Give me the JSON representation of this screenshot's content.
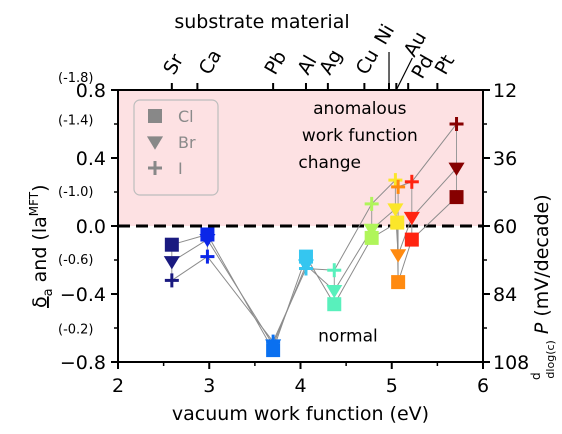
{
  "chart_data": {
    "type": "scatter",
    "xlabel": "vacuum work function (eV)",
    "ylabel_left": {
      "main": "δa",
      "conj": "and",
      "term": "(la",
      "sup": "MFT",
      "close": ")"
    },
    "ylabel_right": {
      "prefix": "d",
      "denom": "dlog(c)",
      "var": "P",
      "unit": "(mV/decade)"
    },
    "top_axis_title": "substrate material",
    "xlim": [
      2,
      6
    ],
    "ylim": [
      -0.8,
      0.8
    ],
    "x_ticks": [
      2,
      3,
      4,
      5,
      6
    ],
    "x_tick_labels": [
      "2",
      "3",
      "4",
      "5",
      "6"
    ],
    "y_ticks": [
      -0.8,
      -0.4,
      0.0,
      0.4,
      0.8
    ],
    "y_tick_labels": [
      "−0.8",
      "−0.4",
      "0.0",
      "0.4",
      "0.8"
    ],
    "y_small_labels": [
      {
        "y": 0.8,
        "text": "(-1.8)"
      },
      {
        "y": 0.55,
        "text": "(-1.4)"
      },
      {
        "y": 0.13,
        "text": "(-1.0)"
      },
      {
        "y": -0.27,
        "text": "(-0.6)"
      },
      {
        "y": -0.68,
        "text": "(-0.2)"
      }
    ],
    "right_ticks": [
      {
        "y": 0.8,
        "text": "12"
      },
      {
        "y": 0.4,
        "text": "36"
      },
      {
        "y": 0.0,
        "text": "60"
      },
      {
        "y": -0.4,
        "text": "84"
      },
      {
        "y": -0.8,
        "text": "108"
      }
    ],
    "top_ticks": [
      {
        "x": 2.59,
        "label": "Sr"
      },
      {
        "x": 2.87,
        "label": "Ca"
      },
      {
        "x": 3.7,
        "label": "Pb"
      },
      {
        "x": 4.06,
        "label": "Al"
      },
      {
        "x": 4.3,
        "label": "Ag"
      },
      {
        "x": 4.7,
        "label": "Cu"
      },
      {
        "x": 4.97,
        "label": "Ni"
      },
      {
        "x": 5.05,
        "label": "Au"
      },
      {
        "x": 5.18,
        "label": "Pd"
      },
      {
        "x": 5.5,
        "label": "Pt"
      }
    ],
    "anomalous_region": {
      "ymin": 0.0,
      "ymax": 0.8,
      "color": "#fde1e3"
    },
    "zero_line": 0.0,
    "annotations": [
      {
        "text": "anomalous",
        "x": 4.65,
        "y": 0.66
      },
      {
        "text": "work function",
        "x": 4.65,
        "y": 0.5
      },
      {
        "text": "change",
        "x": 4.32,
        "y": 0.34
      },
      {
        "text": "normal",
        "x": 4.52,
        "y": -0.68
      }
    ],
    "legend": {
      "placement": "top-left",
      "entries": [
        {
          "marker": "square",
          "label": "Cl"
        },
        {
          "marker": "triangle",
          "label": "Br"
        },
        {
          "marker": "plus",
          "label": "I"
        }
      ]
    },
    "marker_color": "#888888",
    "series": [
      {
        "marker": "square",
        "points": [
          {
            "x": 2.59,
            "y": -0.11,
            "color": "#1a1a80"
          },
          {
            "x": 2.98,
            "y": -0.05,
            "color": "#0b26e8"
          },
          {
            "x": 3.7,
            "y": -0.73,
            "color": "#0a70f0"
          },
          {
            "x": 4.06,
            "y": -0.18,
            "color": "#35c6f0"
          },
          {
            "x": 4.37,
            "y": -0.46,
            "color": "#59f0bc"
          },
          {
            "x": 4.78,
            "y": -0.07,
            "color": "#b0f55a"
          },
          {
            "x": 5.06,
            "y": 0.02,
            "color": "#fbe62a"
          },
          {
            "x": 5.07,
            "y": -0.33,
            "color": "#ff8a10"
          },
          {
            "x": 5.22,
            "y": -0.08,
            "color": "#ff2410"
          },
          {
            "x": 5.71,
            "y": 0.17,
            "color": "#860000"
          }
        ]
      },
      {
        "marker": "triangle",
        "points": [
          {
            "x": 2.59,
            "y": -0.21,
            "color": "#1a1a80"
          },
          {
            "x": 2.98,
            "y": -0.08,
            "color": "#0b26e8"
          },
          {
            "x": 3.7,
            "y": -0.7,
            "color": "#0a70f0"
          },
          {
            "x": 4.06,
            "y": -0.23,
            "color": "#35c6f0"
          },
          {
            "x": 4.37,
            "y": -0.38,
            "color": "#59f0bc"
          },
          {
            "x": 4.78,
            "y": -0.02,
            "color": "#b0f55a"
          },
          {
            "x": 5.04,
            "y": 0.1,
            "color": "#fbe62a"
          },
          {
            "x": 5.07,
            "y": -0.17,
            "color": "#ff8a10"
          },
          {
            "x": 5.22,
            "y": 0.05,
            "color": "#ff2410"
          },
          {
            "x": 5.71,
            "y": 0.34,
            "color": "#860000"
          }
        ]
      },
      {
        "marker": "plus",
        "points": [
          {
            "x": 2.59,
            "y": -0.32,
            "color": "#1a1a80"
          },
          {
            "x": 2.98,
            "y": -0.18,
            "color": "#0b26e8"
          },
          {
            "x": 3.7,
            "y": -0.68,
            "color": "#0a70f0"
          },
          {
            "x": 4.06,
            "y": -0.25,
            "color": "#35c6f0"
          },
          {
            "x": 4.37,
            "y": -0.26,
            "color": "#59f0bc"
          },
          {
            "x": 4.78,
            "y": 0.13,
            "color": "#b0f55a"
          },
          {
            "x": 5.04,
            "y": 0.27,
            "color": "#fbe62a"
          },
          {
            "x": 5.07,
            "y": 0.23,
            "color": "#ff8a10"
          },
          {
            "x": 5.22,
            "y": 0.26,
            "color": "#ff2410"
          },
          {
            "x": 5.71,
            "y": 0.6,
            "color": "#860000"
          }
        ]
      }
    ]
  }
}
